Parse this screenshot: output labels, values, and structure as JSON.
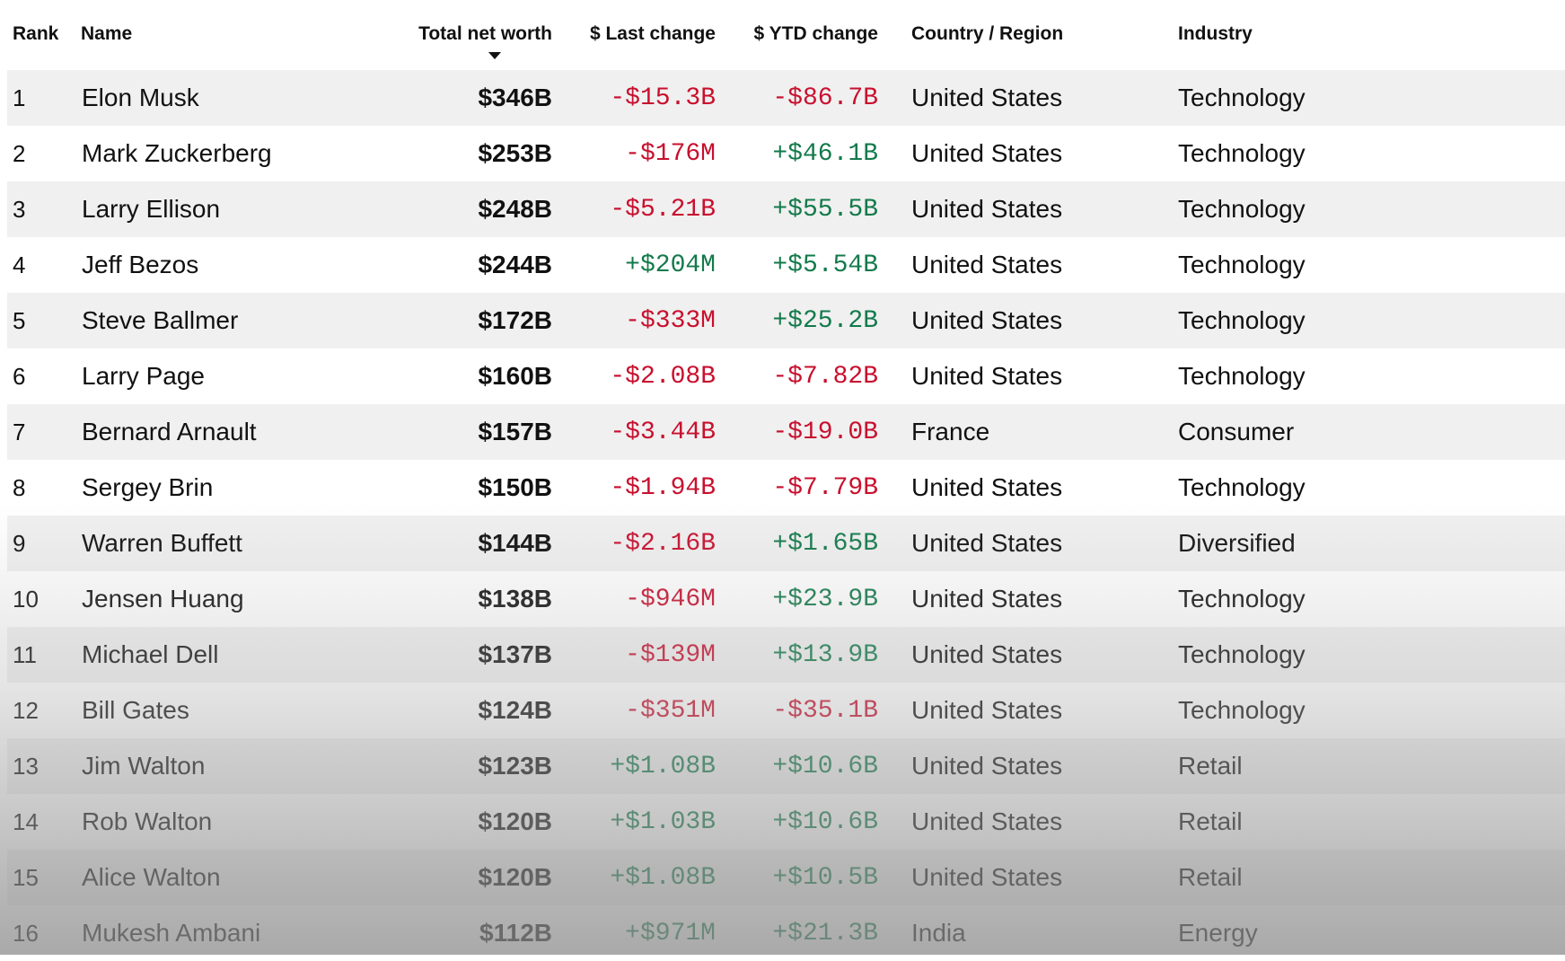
{
  "columns": {
    "rank": "Rank",
    "name": "Name",
    "net_worth": "Total net worth",
    "last_change": "$ Last change",
    "ytd_change": "$ YTD change",
    "country": "Country / Region",
    "industry": "Industry"
  },
  "colors": {
    "negative": "#c8102e",
    "positive": "#137a4b",
    "stripe": "#f0f0f0"
  },
  "sort": {
    "column": "net_worth",
    "direction": "descending",
    "icon": "caret-down-icon"
  },
  "rows": [
    {
      "rank": "1",
      "name": "Elon Musk",
      "net_worth": "$346B",
      "last_change": "-$15.3B",
      "ytd_change": "-$86.7B",
      "country": "United States",
      "industry": "Technology"
    },
    {
      "rank": "2",
      "name": "Mark Zuckerberg",
      "net_worth": "$253B",
      "last_change": "-$176M",
      "ytd_change": "+$46.1B",
      "country": "United States",
      "industry": "Technology"
    },
    {
      "rank": "3",
      "name": "Larry Ellison",
      "net_worth": "$248B",
      "last_change": "-$5.21B",
      "ytd_change": "+$55.5B",
      "country": "United States",
      "industry": "Technology"
    },
    {
      "rank": "4",
      "name": "Jeff Bezos",
      "net_worth": "$244B",
      "last_change": "+$204M",
      "ytd_change": "+$5.54B",
      "country": "United States",
      "industry": "Technology"
    },
    {
      "rank": "5",
      "name": "Steve Ballmer",
      "net_worth": "$172B",
      "last_change": "-$333M",
      "ytd_change": "+$25.2B",
      "country": "United States",
      "industry": "Technology"
    },
    {
      "rank": "6",
      "name": "Larry Page",
      "net_worth": "$160B",
      "last_change": "-$2.08B",
      "ytd_change": "-$7.82B",
      "country": "United States",
      "industry": "Technology"
    },
    {
      "rank": "7",
      "name": "Bernard Arnault",
      "net_worth": "$157B",
      "last_change": "-$3.44B",
      "ytd_change": "-$19.0B",
      "country": "France",
      "industry": "Consumer"
    },
    {
      "rank": "8",
      "name": "Sergey Brin",
      "net_worth": "$150B",
      "last_change": "-$1.94B",
      "ytd_change": "-$7.79B",
      "country": "United States",
      "industry": "Technology"
    },
    {
      "rank": "9",
      "name": "Warren Buffett",
      "net_worth": "$144B",
      "last_change": "-$2.16B",
      "ytd_change": "+$1.65B",
      "country": "United States",
      "industry": "Diversified"
    },
    {
      "rank": "10",
      "name": "Jensen Huang",
      "net_worth": "$138B",
      "last_change": "-$946M",
      "ytd_change": "+$23.9B",
      "country": "United States",
      "industry": "Technology"
    },
    {
      "rank": "11",
      "name": "Michael Dell",
      "net_worth": "$137B",
      "last_change": "-$139M",
      "ytd_change": "+$13.9B",
      "country": "United States",
      "industry": "Technology"
    },
    {
      "rank": "12",
      "name": "Bill Gates",
      "net_worth": "$124B",
      "last_change": "-$351M",
      "ytd_change": "-$35.1B",
      "country": "United States",
      "industry": "Technology"
    },
    {
      "rank": "13",
      "name": "Jim Walton",
      "net_worth": "$123B",
      "last_change": "+$1.08B",
      "ytd_change": "+$10.6B",
      "country": "United States",
      "industry": "Retail"
    },
    {
      "rank": "14",
      "name": "Rob Walton",
      "net_worth": "$120B",
      "last_change": "+$1.03B",
      "ytd_change": "+$10.6B",
      "country": "United States",
      "industry": "Retail"
    },
    {
      "rank": "15",
      "name": "Alice Walton",
      "net_worth": "$120B",
      "last_change": "+$1.08B",
      "ytd_change": "+$10.5B",
      "country": "United States",
      "industry": "Retail"
    },
    {
      "rank": "16",
      "name": "Mukesh Ambani",
      "net_worth": "$112B",
      "last_change": "+$971M",
      "ytd_change": "+$21.3B",
      "country": "India",
      "industry": "Energy"
    }
  ]
}
